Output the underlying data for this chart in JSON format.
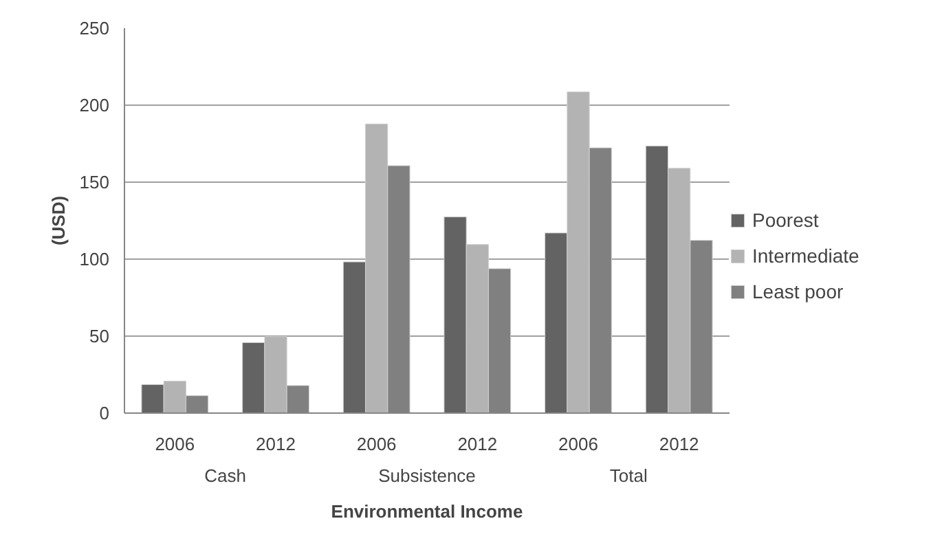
{
  "chart_data": {
    "type": "bar",
    "xlabel": "Environmental Income",
    "ylabel": "(USD)",
    "categories": [
      "2006",
      "2012",
      "2006",
      "2012",
      "2006",
      "2012"
    ],
    "annotations": [
      "Cash",
      "Subsistence",
      "Total"
    ],
    "series": [
      {
        "name": "Poorest",
        "color": "#636363",
        "values": [
          18.5,
          45.8,
          98.2,
          127.4,
          117,
          173.5
        ]
      },
      {
        "name": "Intermediate",
        "color": "#b3b3b3",
        "values": [
          20.8,
          49.7,
          187.8,
          109.5,
          208.6,
          159
        ]
      },
      {
        "name": "Least poor",
        "color": "#808080",
        "values": [
          11.3,
          17.9,
          160.7,
          93.8,
          172.3,
          112.2
        ]
      }
    ],
    "ylim": [
      0,
      250
    ],
    "yticks": [
      0,
      50,
      100,
      150,
      200,
      250
    ],
    "grid": "y",
    "legend": "right"
  }
}
